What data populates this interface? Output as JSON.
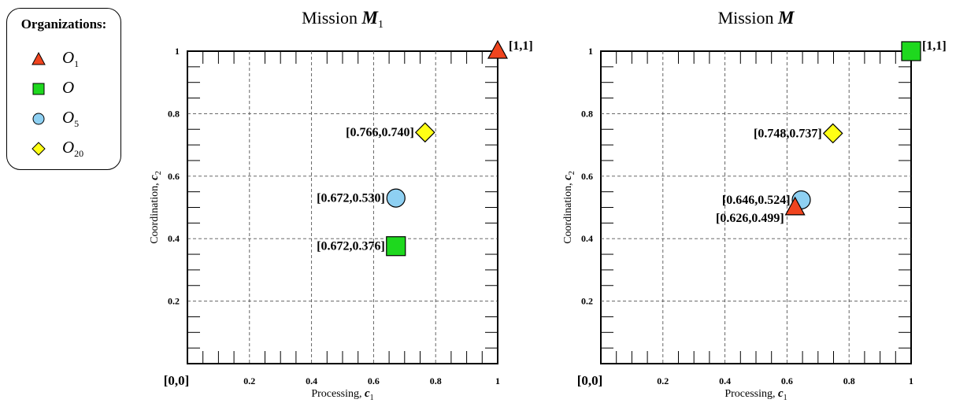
{
  "legend": {
    "title": "Organizations:",
    "items": [
      {
        "main": "O",
        "sub": "1",
        "shape": "triangle",
        "color": "#f0441e"
      },
      {
        "main": "O",
        "sub": "",
        "shape": "square",
        "color": "#1ed81e"
      },
      {
        "main": "O",
        "sub": "5",
        "shape": "circle",
        "color": "#8ed0f2"
      },
      {
        "main": "O",
        "sub": "20",
        "shape": "diamond",
        "color": "#ffff14"
      }
    ]
  },
  "chart_data": [
    {
      "type": "scatter",
      "title": "Mission",
      "title_symbol": "M",
      "title_sub": "1",
      "xlabel": "Processing,",
      "xlabel_symbol": "c",
      "xlabel_sub": "1",
      "ylabel": "Coordination,",
      "ylabel_symbol": "c",
      "ylabel_sub": "2",
      "xlim": [
        0,
        1
      ],
      "ylim": [
        0,
        1
      ],
      "x_ticks": [
        "0.2",
        "0.4",
        "0.6",
        "0.8",
        "1"
      ],
      "y_ticks": [
        "0.2",
        "0.4",
        "0.6",
        "0.8",
        "1"
      ],
      "origin_label": "[0,0]",
      "grid": true,
      "points": [
        {
          "x": 1,
          "y": 1,
          "shape": "triangle",
          "color": "#f0441e",
          "label": "[1,1]",
          "label_side": "right"
        },
        {
          "x": 0.766,
          "y": 0.74,
          "shape": "diamond",
          "color": "#ffff14",
          "label": "[0.766,0.740]",
          "label_side": "left"
        },
        {
          "x": 0.672,
          "y": 0.53,
          "shape": "circle",
          "color": "#8ed0f2",
          "label": "[0.672,0.530]",
          "label_side": "left"
        },
        {
          "x": 0.672,
          "y": 0.376,
          "shape": "square",
          "color": "#1ed81e",
          "label": "[0.672,0.376]",
          "label_side": "left"
        }
      ]
    },
    {
      "type": "scatter",
      "title": "Mission",
      "title_symbol": "M",
      "title_sub": "",
      "xlabel": "Processing,",
      "xlabel_symbol": "c",
      "xlabel_sub": "1",
      "ylabel": "Coordination,",
      "ylabel_symbol": "c",
      "ylabel_sub": "2",
      "xlim": [
        0,
        1
      ],
      "ylim": [
        0,
        1
      ],
      "x_ticks": [
        "0.2",
        "0.4",
        "0.6",
        "0.8",
        "1"
      ],
      "y_ticks": [
        "0.2",
        "0.4",
        "0.6",
        "0.8",
        "1"
      ],
      "origin_label": "[0,0]",
      "grid": true,
      "points": [
        {
          "x": 1,
          "y": 1,
          "shape": "square",
          "color": "#1ed81e",
          "label": "[1,1]",
          "label_side": "right"
        },
        {
          "x": 0.748,
          "y": 0.737,
          "shape": "diamond",
          "color": "#ffff14",
          "label": "[0.748,0.737]",
          "label_side": "left"
        },
        {
          "x": 0.646,
          "y": 0.524,
          "shape": "circle",
          "color": "#8ed0f2",
          "label": "[0.646,0.524]",
          "label_side": "left"
        },
        {
          "x": 0.626,
          "y": 0.499,
          "shape": "triangle",
          "color": "#f0441e",
          "label": "[0.626,0.499]",
          "label_side": "left-below"
        }
      ]
    }
  ]
}
